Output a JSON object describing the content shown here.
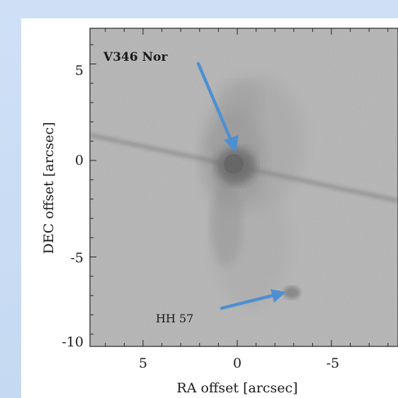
{
  "figure": {
    "xlabel": "RA offset [arcsec]",
    "ylabel": "DEC offset [arcsec]",
    "x_ticks": [
      "5",
      "0",
      "-5"
    ],
    "y_ticks": [
      "5",
      "0",
      "-5",
      "-10"
    ],
    "annotations": {
      "star_label": "V346 Nor",
      "hh_label": "HH 57"
    },
    "colors": {
      "arrow": "#4f8fd0",
      "background": "#cfe0f6"
    }
  }
}
